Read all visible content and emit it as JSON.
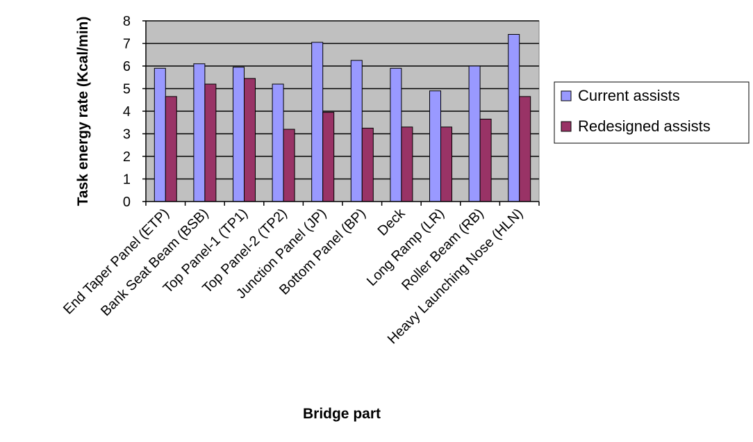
{
  "chart_data": {
    "type": "bar",
    "xlabel": "Bridge part",
    "ylabel": "Task energy rate (Kcal/min)",
    "ylim": [
      0,
      8
    ],
    "yticks": [
      "0",
      "1",
      "2",
      "3",
      "4",
      "5",
      "6",
      "7",
      "8"
    ],
    "grid": true,
    "legend_position": "right",
    "categories": [
      "End Taper Panel (ETP)",
      "Bank Seat Beam (BSB)",
      "Top Panel-1 (TP1)",
      "Top Panel-2 (TP2)",
      "Junction Panel (JP)",
      "Bottom Panel (BP)",
      "Deck",
      "Long Ramp (LR)",
      "Roller Beam (RB)",
      "Heavy Launching Nose (HLN)"
    ],
    "series": [
      {
        "name": "Current assists",
        "color": "#9999ff",
        "values": [
          5.9,
          6.1,
          5.95,
          5.2,
          7.05,
          6.25,
          5.9,
          4.9,
          6.0,
          7.4
        ]
      },
      {
        "name": "Redesigned assists",
        "color": "#993366",
        "values": [
          4.65,
          5.2,
          5.45,
          3.2,
          3.95,
          3.25,
          3.3,
          3.3,
          3.65,
          4.65
        ]
      }
    ],
    "plot_background": "#c0c0c0"
  }
}
